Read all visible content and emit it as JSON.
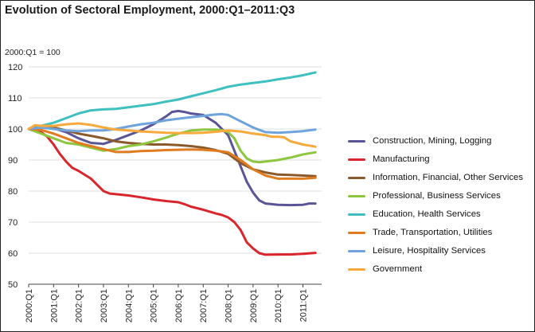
{
  "chart_data": {
    "type": "line",
    "title": "Evolution of Sectoral Employment, 2000:Q1–2011:Q3",
    "unit_label": "2000:Q1 = 100",
    "xlabel": "",
    "ylabel": "2000:Q1 = 100",
    "ylim": [
      50,
      120
    ],
    "yticks": [
      50,
      60,
      70,
      80,
      90,
      100,
      110,
      120
    ],
    "xlim": [
      0,
      47
    ],
    "xticks": [
      {
        "q": 0,
        "label": "2000:Q1"
      },
      {
        "q": 4,
        "label": "2001:Q1"
      },
      {
        "q": 8,
        "label": "2002:Q1"
      },
      {
        "q": 12,
        "label": "2003:Q1"
      },
      {
        "q": 16,
        "label": "2004:Q1"
      },
      {
        "q": 20,
        "label": "2005:Q1"
      },
      {
        "q": 24,
        "label": "2006:Q1"
      },
      {
        "q": 28,
        "label": "2007:Q1"
      },
      {
        "q": 32,
        "label": "2008:Q1"
      },
      {
        "q": 36,
        "label": "2009:Q1"
      },
      {
        "q": 40,
        "label": "2010:Q1"
      },
      {
        "q": 44,
        "label": "2011:Q1"
      }
    ],
    "grid": "horizontal",
    "legend_position": "right",
    "series": [
      {
        "name": "Construction, Mining, Logging",
        "color": "#5a5596",
        "points": [
          [
            0,
            100
          ],
          [
            2,
            100.5
          ],
          [
            4,
            100.2
          ],
          [
            6,
            99
          ],
          [
            8,
            97
          ],
          [
            10,
            95.5
          ],
          [
            12,
            95.2
          ],
          [
            14,
            96.5
          ],
          [
            16,
            98
          ],
          [
            18,
            99.5
          ],
          [
            20,
            101.5
          ],
          [
            22,
            104
          ],
          [
            23,
            105.5
          ],
          [
            24,
            105.8
          ],
          [
            25,
            105.5
          ],
          [
            26,
            105
          ],
          [
            28,
            104.5
          ],
          [
            30,
            102
          ],
          [
            32,
            98
          ],
          [
            34,
            88
          ],
          [
            35,
            83
          ],
          [
            36,
            79.5
          ],
          [
            37,
            77
          ],
          [
            38,
            76
          ],
          [
            40,
            75.6
          ],
          [
            42,
            75.5
          ],
          [
            44,
            75.6
          ],
          [
            45,
            76
          ],
          [
            46,
            76
          ]
        ]
      },
      {
        "name": "Manufacturing",
        "color": "#d9262c",
        "points": [
          [
            0,
            100
          ],
          [
            2,
            99
          ],
          [
            3,
            97.5
          ],
          [
            4,
            95
          ],
          [
            5,
            92
          ],
          [
            6,
            89.5
          ],
          [
            7,
            87.5
          ],
          [
            8,
            86.5
          ],
          [
            10,
            84
          ],
          [
            11,
            82
          ],
          [
            12,
            80
          ],
          [
            13,
            79.2
          ],
          [
            14,
            79
          ],
          [
            16,
            78.6
          ],
          [
            18,
            78
          ],
          [
            20,
            77.3
          ],
          [
            22,
            76.8
          ],
          [
            24,
            76.4
          ],
          [
            25,
            75.8
          ],
          [
            26,
            75
          ],
          [
            28,
            74
          ],
          [
            30,
            72.8
          ],
          [
            31,
            72.3
          ],
          [
            32,
            71.5
          ],
          [
            33,
            70
          ],
          [
            34,
            67.5
          ],
          [
            35,
            63.5
          ],
          [
            36,
            61.5
          ],
          [
            37,
            60
          ],
          [
            38,
            59.5
          ],
          [
            40,
            59.6
          ],
          [
            42,
            59.6
          ],
          [
            44,
            59.8
          ],
          [
            46,
            60.1
          ]
        ]
      },
      {
        "name": "Information, Financial, Other Services",
        "color": "#8a5a2b",
        "points": [
          [
            0,
            100
          ],
          [
            2,
            100.8
          ],
          [
            4,
            100.5
          ],
          [
            6,
            99.5
          ],
          [
            8,
            98.5
          ],
          [
            10,
            97.8
          ],
          [
            12,
            97
          ],
          [
            14,
            96
          ],
          [
            16,
            95.5
          ],
          [
            18,
            95.2
          ],
          [
            20,
            95
          ],
          [
            22,
            95
          ],
          [
            24,
            94.8
          ],
          [
            26,
            94.5
          ],
          [
            28,
            94
          ],
          [
            30,
            93.2
          ],
          [
            32,
            92
          ],
          [
            34,
            89
          ],
          [
            36,
            87
          ],
          [
            38,
            86
          ],
          [
            40,
            85.3
          ],
          [
            42,
            85.2
          ],
          [
            44,
            85
          ],
          [
            46,
            84.8
          ]
        ]
      },
      {
        "name": "Professional, Business Services",
        "color": "#8dc63f",
        "points": [
          [
            0,
            100
          ],
          [
            2,
            98.5
          ],
          [
            4,
            97
          ],
          [
            6,
            95.5
          ],
          [
            8,
            95
          ],
          [
            10,
            94
          ],
          [
            12,
            93
          ],
          [
            14,
            93.5
          ],
          [
            16,
            94.5
          ],
          [
            18,
            95
          ],
          [
            20,
            96
          ],
          [
            22,
            97.2
          ],
          [
            24,
            98.5
          ],
          [
            26,
            99.5
          ],
          [
            28,
            99.8
          ],
          [
            30,
            99.8
          ],
          [
            31,
            99.6
          ],
          [
            32,
            99
          ],
          [
            33,
            97
          ],
          [
            34,
            93
          ],
          [
            35,
            90.5
          ],
          [
            36,
            89.5
          ],
          [
            37,
            89.3
          ],
          [
            38,
            89.5
          ],
          [
            40,
            90
          ],
          [
            42,
            90.8
          ],
          [
            44,
            91.8
          ],
          [
            46,
            92.5
          ]
        ]
      },
      {
        "name": "Education, Health Services",
        "color": "#3fbfbf",
        "points": [
          [
            0,
            100
          ],
          [
            2,
            101
          ],
          [
            4,
            102
          ],
          [
            6,
            103.5
          ],
          [
            8,
            105
          ],
          [
            10,
            106
          ],
          [
            12,
            106.3
          ],
          [
            14,
            106.5
          ],
          [
            16,
            107
          ],
          [
            18,
            107.5
          ],
          [
            20,
            108
          ],
          [
            22,
            108.8
          ],
          [
            24,
            109.5
          ],
          [
            26,
            110.5
          ],
          [
            28,
            111.5
          ],
          [
            30,
            112.5
          ],
          [
            32,
            113.6
          ],
          [
            34,
            114.3
          ],
          [
            36,
            114.8
          ],
          [
            38,
            115.3
          ],
          [
            40,
            116
          ],
          [
            42,
            116.6
          ],
          [
            44,
            117.3
          ],
          [
            46,
            118.2
          ]
        ]
      },
      {
        "name": "Trade, Transportation, Utilities",
        "color": "#e07b20",
        "points": [
          [
            0,
            100
          ],
          [
            2,
            99.7
          ],
          [
            4,
            98.5
          ],
          [
            6,
            97
          ],
          [
            8,
            95.5
          ],
          [
            10,
            94.5
          ],
          [
            12,
            93.5
          ],
          [
            14,
            92.6
          ],
          [
            16,
            92.6
          ],
          [
            18,
            92.9
          ],
          [
            20,
            93
          ],
          [
            22,
            93.2
          ],
          [
            24,
            93.3
          ],
          [
            26,
            93.4
          ],
          [
            28,
            93.3
          ],
          [
            30,
            93
          ],
          [
            32,
            92.5
          ],
          [
            34,
            90
          ],
          [
            36,
            87
          ],
          [
            38,
            85
          ],
          [
            40,
            84
          ],
          [
            42,
            84
          ],
          [
            44,
            84
          ],
          [
            46,
            84.3
          ]
        ]
      },
      {
        "name": "Leisure, Hospitality Services",
        "color": "#6fa3dc",
        "points": [
          [
            0,
            100
          ],
          [
            2,
            100.5
          ],
          [
            4,
            100
          ],
          [
            6,
            99.5
          ],
          [
            8,
            99.3
          ],
          [
            10,
            99.5
          ],
          [
            12,
            99.5
          ],
          [
            14,
            100
          ],
          [
            16,
            100.8
          ],
          [
            18,
            101.5
          ],
          [
            20,
            102
          ],
          [
            22,
            102.8
          ],
          [
            24,
            103.3
          ],
          [
            26,
            103.8
          ],
          [
            28,
            104.2
          ],
          [
            30,
            104.7
          ],
          [
            31,
            104.8
          ],
          [
            32,
            104.5
          ],
          [
            34,
            102.5
          ],
          [
            36,
            100.5
          ],
          [
            37,
            99.7
          ],
          [
            38,
            99
          ],
          [
            40,
            98.8
          ],
          [
            42,
            99
          ],
          [
            44,
            99.3
          ],
          [
            46,
            99.8
          ]
        ]
      },
      {
        "name": "Government",
        "color": "#f7a93b",
        "points": [
          [
            0,
            100
          ],
          [
            1,
            101.2
          ],
          [
            2,
            101
          ],
          [
            4,
            101
          ],
          [
            6,
            101.5
          ],
          [
            8,
            101.8
          ],
          [
            10,
            101.3
          ],
          [
            12,
            100.5
          ],
          [
            14,
            99.8
          ],
          [
            16,
            99.5
          ],
          [
            18,
            99.2
          ],
          [
            20,
            99
          ],
          [
            22,
            98.8
          ],
          [
            24,
            98.7
          ],
          [
            26,
            98.7
          ],
          [
            28,
            98.8
          ],
          [
            30,
            99.1
          ],
          [
            32,
            99.5
          ],
          [
            34,
            99.2
          ],
          [
            36,
            98.5
          ],
          [
            38,
            98
          ],
          [
            39,
            97.5
          ],
          [
            40,
            97.5
          ],
          [
            41,
            97.3
          ],
          [
            42,
            96
          ],
          [
            44,
            95
          ],
          [
            46,
            94.3
          ]
        ]
      }
    ]
  }
}
